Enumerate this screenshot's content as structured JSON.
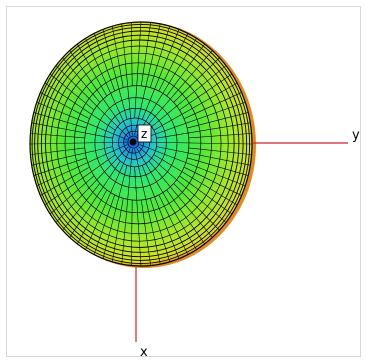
{
  "axes": {
    "x_label": "x",
    "y_label": "y",
    "z_label": "z",
    "axis_color": "#d02030"
  },
  "mesh": {
    "colors": {
      "outer": "#c8e820",
      "mid": "#2ee84a",
      "inner": "#22c8a8",
      "core": "#1aa8e8",
      "center": "#0a50d8",
      "edge": "#e87820",
      "lines": "#000000"
    }
  }
}
